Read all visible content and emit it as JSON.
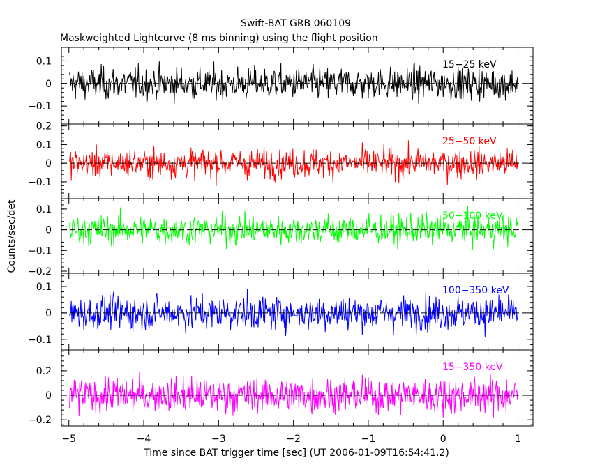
{
  "chart_data": {
    "type": "line",
    "title": "Swift-BAT GRB 060109",
    "subtitle": "Maskweighted Lightcurve (8 ms binning) using the flight position",
    "xlabel": "Time since BAT trigger time [sec] (UT 2006-01-09T16:54:41.2)",
    "ylabel": "Counts/sec/det",
    "xlim": [
      -5.1,
      1.2
    ],
    "x_ticks": [
      -5,
      -4,
      -3,
      -2,
      -1,
      0,
      1
    ],
    "x_tick_labels": [
      "−5",
      "−4",
      "−3",
      "−2",
      "−1",
      "0",
      "1"
    ],
    "x_start": -4.992,
    "x_step": 0.008,
    "grid": false,
    "panels": [
      {
        "name": "15-25 keV",
        "label": "15−25 keV",
        "color": "#000000",
        "ylim": [
          -0.18,
          0.16
        ],
        "y_ticks": [
          -0.1,
          0,
          0.1
        ],
        "y_tick_labels": [
          "−0.1",
          "0",
          "0.1"
        ],
        "noise_sd": 0.05
      },
      {
        "name": "25-50 keV",
        "label": "25−50 keV",
        "color": "#ff0000",
        "ylim": [
          -0.19,
          0.21
        ],
        "y_ticks": [
          -0.1,
          0,
          0.1,
          0.2
        ],
        "y_tick_labels": [
          "−0.1",
          "0",
          "0.1",
          "0.2"
        ],
        "noise_sd": 0.055
      },
      {
        "name": "50-100 keV",
        "label": "50−100 keV",
        "color": "#00ff00",
        "ylim": [
          -0.21,
          0.15
        ],
        "y_ticks": [
          -0.2,
          -0.1,
          0,
          0.1
        ],
        "y_tick_labels": [
          "−0.2",
          "−0.1",
          "0",
          "0.1"
        ],
        "noise_sd": 0.05
      },
      {
        "name": "100-350 keV",
        "label": "100−350 keV",
        "color": "#0000ff",
        "ylim": [
          -0.14,
          0.15
        ],
        "y_ticks": [
          -0.1,
          0,
          0.1
        ],
        "y_tick_labels": [
          "−0.1",
          "0",
          "0.1"
        ],
        "noise_sd": 0.045
      },
      {
        "name": "15-350 keV",
        "label": "15−350 keV",
        "color": "#ff00ff",
        "ylim": [
          -0.25,
          0.37
        ],
        "y_ticks": [
          -0.2,
          0,
          0.2
        ],
        "y_tick_labels": [
          "−0.2",
          "0",
          "0.2"
        ],
        "noise_sd": 0.1
      }
    ]
  }
}
